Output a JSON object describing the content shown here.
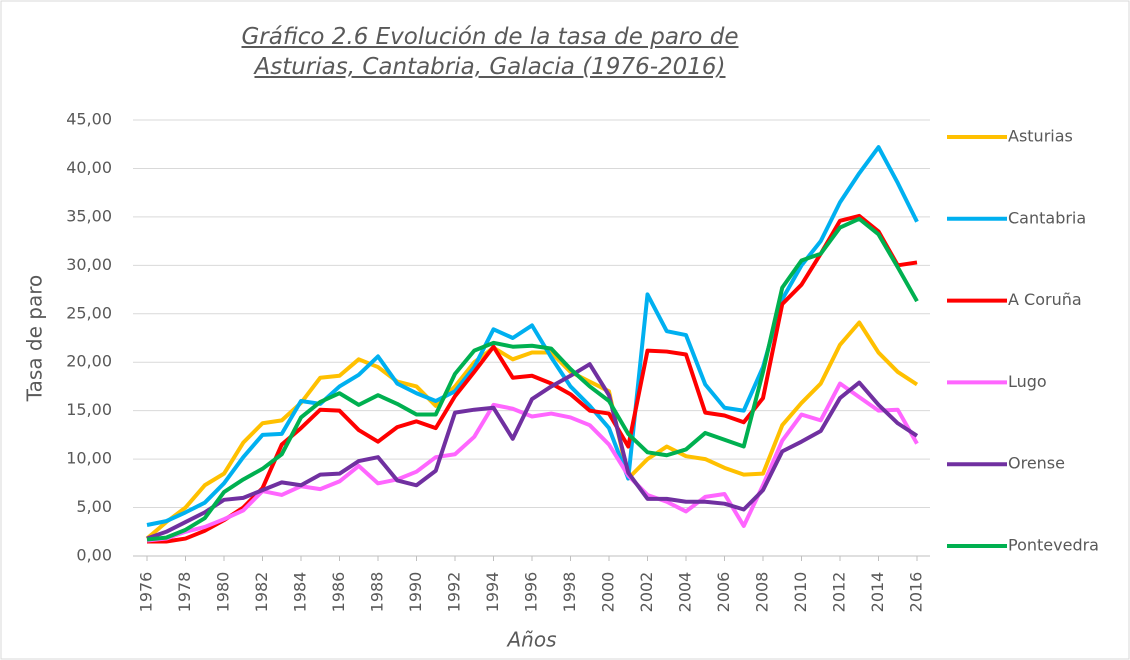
{
  "chart_data": {
    "type": "line",
    "title": "Gráfico 2.6 Evolución de la tasa de paro de Asturias, Cantabria, Galacia (1976-2016)",
    "x_label": "Años",
    "y_label": "Tasa de paro",
    "x": [
      1976,
      1977,
      1978,
      1979,
      1980,
      1981,
      1982,
      1983,
      1984,
      1985,
      1986,
      1987,
      1988,
      1989,
      1990,
      1991,
      1992,
      1993,
      1994,
      1995,
      1996,
      1997,
      1998,
      1999,
      2000,
      2001,
      2002,
      2003,
      2004,
      2005,
      2006,
      2007,
      2008,
      2009,
      2010,
      2011,
      2012,
      2013,
      2014,
      2015,
      2016
    ],
    "xlim": [
      1976,
      2016
    ],
    "xticks": [
      1976,
      1978,
      1980,
      1982,
      1984,
      1986,
      1988,
      1990,
      1992,
      1994,
      1996,
      1998,
      2000,
      2002,
      2004,
      2006,
      2008,
      2010,
      2012,
      2014,
      2016
    ],
    "ylim": [
      0,
      45
    ],
    "yticks": [
      {
        "value": 0,
        "label": "0,00"
      },
      {
        "value": 5,
        "label": "5,00"
      },
      {
        "value": 10,
        "label": "10,00"
      },
      {
        "value": 15,
        "label": "15,00"
      },
      {
        "value": 20,
        "label": "20,00"
      },
      {
        "value": 25,
        "label": "25,00"
      },
      {
        "value": 30,
        "label": "30,00"
      },
      {
        "value": 35,
        "label": "35,00"
      },
      {
        "value": 40,
        "label": "40,00"
      },
      {
        "value": 45,
        "label": "45,00"
      }
    ],
    "grid": true,
    "legend": "right",
    "series": [
      {
        "name": "Asturias",
        "color": "#ffc000",
        "values": [
          1.8,
          3.5,
          5,
          7.3,
          8.5,
          11.7,
          13.7,
          14,
          15.8,
          18.4,
          18.6,
          20.3,
          19.5,
          18,
          17.5,
          15.5,
          17.5,
          20,
          21.5,
          20.3,
          21,
          21,
          19,
          18,
          17,
          8,
          10,
          11.3,
          10.3,
          10,
          9.1,
          8.4,
          8.5,
          13.5,
          15.8,
          17.8,
          21.8,
          24.1,
          21,
          19,
          17.7
        ]
      },
      {
        "name": "Cantabria",
        "color": "#00b0f0",
        "values": [
          3.2,
          3.6,
          4.5,
          5.5,
          7.5,
          10.2,
          12.5,
          12.6,
          16,
          15.7,
          17.5,
          18.7,
          20.6,
          17.8,
          16.8,
          16,
          17,
          19.5,
          23.4,
          22.5,
          23.8,
          20.5,
          17.5,
          15.5,
          13.2,
          8,
          27,
          23.2,
          22.8,
          17.7,
          15.3,
          15,
          19.5,
          26.5,
          30,
          32.5,
          36.5,
          39.5,
          42.2,
          38.5,
          34.5
        ]
      },
      {
        "name": "A Coruña",
        "color": "#ff0000",
        "values": [
          1.5,
          1.5,
          1.8,
          2.6,
          3.7,
          5,
          7,
          11.5,
          13.2,
          15.1,
          15,
          13,
          11.8,
          13.3,
          13.9,
          13.2,
          16.5,
          19,
          21.6,
          18.4,
          18.6,
          17.8,
          16.7,
          15,
          14.7,
          11.3,
          21.2,
          21.1,
          20.8,
          14.8,
          14.5,
          13.8,
          16.3,
          26,
          28,
          31.2,
          34.6,
          35.1,
          33.5,
          30,
          30.3
        ]
      },
      {
        "name": "Lugo",
        "color": "#ff66ff",
        "values": [
          1.6,
          1.8,
          2.5,
          3,
          3.8,
          4.7,
          6.7,
          6.3,
          7.2,
          6.9,
          7.7,
          9.3,
          7.5,
          7.9,
          8.7,
          10.2,
          10.5,
          12.3,
          15.6,
          15.2,
          14.4,
          14.7,
          14.3,
          13.5,
          11.5,
          8.3,
          6.3,
          5.6,
          4.6,
          6.1,
          6.4,
          3.1,
          7.3,
          11.9,
          14.6,
          14,
          17.8,
          16.4,
          15,
          15.1,
          11.6
        ]
      },
      {
        "name": "Orense",
        "color": "#7030a0",
        "values": [
          1.8,
          2.5,
          3.5,
          4.5,
          5.8,
          6,
          6.8,
          7.6,
          7.3,
          8.4,
          8.5,
          9.8,
          10.2,
          7.8,
          7.3,
          8.8,
          14.8,
          15.1,
          15.3,
          12.1,
          16.2,
          17.5,
          18.6,
          19.8,
          16.6,
          8.6,
          5.9,
          5.9,
          5.6,
          5.6,
          5.4,
          4.8,
          6.8,
          10.8,
          11.8,
          12.9,
          16.3,
          17.9,
          15.6,
          13.7,
          12.4
        ]
      },
      {
        "name": "Pontevedra",
        "color": "#00b050",
        "values": [
          1.7,
          1.9,
          2.7,
          3.9,
          6.6,
          7.9,
          9,
          10.5,
          14.3,
          15.9,
          16.8,
          15.6,
          16.6,
          15.7,
          14.6,
          14.6,
          18.8,
          21.2,
          22,
          21.6,
          21.7,
          21.4,
          19.3,
          17.5,
          16,
          12.6,
          10.7,
          10.4,
          11,
          12.7,
          12,
          11.3,
          19,
          27.7,
          30.5,
          31.2,
          33.9,
          34.8,
          33.2,
          29.8,
          26.3
        ]
      }
    ]
  }
}
